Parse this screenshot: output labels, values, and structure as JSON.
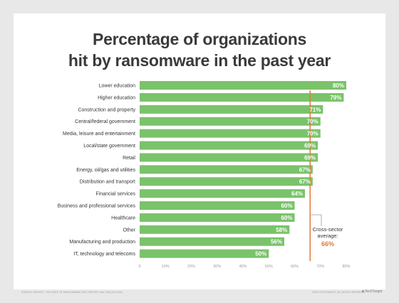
{
  "title_line1": "Percentage of organizations",
  "title_line2": "hit by ransomware in the past year",
  "chart_data": {
    "type": "bar",
    "orientation": "horizontal",
    "categories": [
      "Lower education",
      "Higher education",
      "Construction and property",
      "Central/federal government",
      "Media, leisure and entertainment",
      "Local/state government",
      "Retail",
      "Energy, oil/gas and utilities",
      "Distribution and transport",
      "Financial services",
      "Business and professional services",
      "Healthcare",
      "Other",
      "Manufacturing and production",
      "IT, technology and telecoms"
    ],
    "values": [
      80,
      79,
      71,
      70,
      70,
      69,
      69,
      67,
      67,
      64,
      60,
      60,
      58,
      56,
      50
    ],
    "value_labels": [
      "80%",
      "79%",
      "71%",
      "70%",
      "70%",
      "69%",
      "69%",
      "67%",
      "67%",
      "64%",
      "60%",
      "60%",
      "58%",
      "56%",
      "50%"
    ],
    "xlim": [
      0,
      80
    ],
    "xticks": [
      0,
      10,
      20,
      30,
      40,
      50,
      60,
      70,
      80
    ],
    "xtick_labels": [
      "0",
      "10%",
      "20%",
      "30%",
      "40%",
      "50%",
      "60%",
      "70%",
      "80%"
    ],
    "bar_color": "#7ac36a",
    "reference_line": {
      "value": 66,
      "color": "#e07b39",
      "label_line1": "Cross-sector",
      "label_line2": "average:",
      "value_label": "66%"
    }
  },
  "footer": {
    "source": "SOURCE: SOPHOS, \"THE STATE OF RANSOMWARE 2023\" REPORT, MAY 2023 (N=3,000)",
    "copyright": "©2023 TECHTARGET. ALL RIGHTS RESERVED",
    "brand": "TechTarget"
  }
}
